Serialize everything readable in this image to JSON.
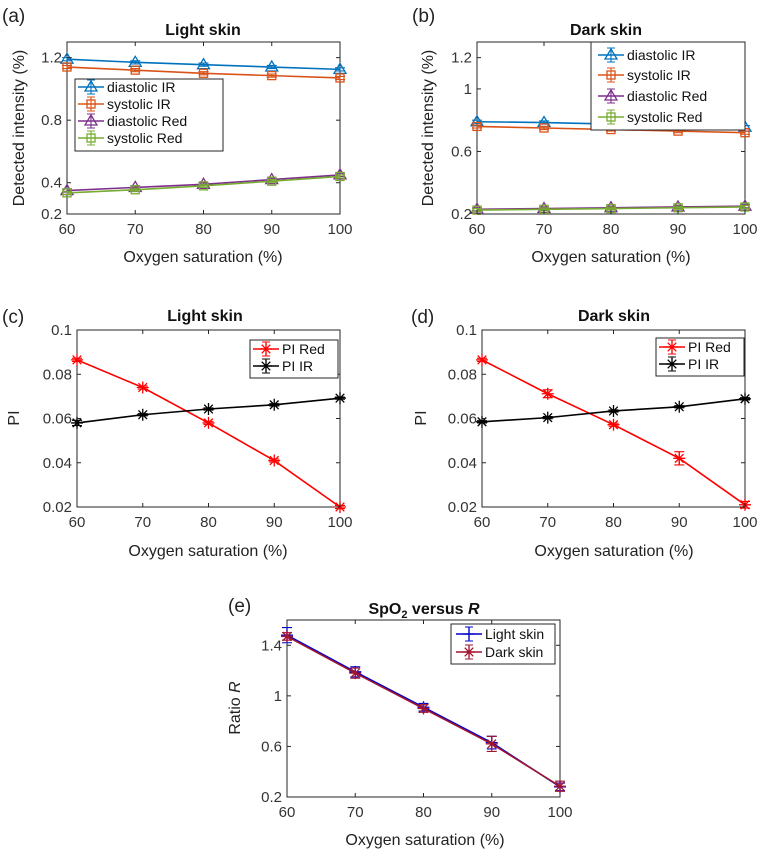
{
  "chart_data": [
    {
      "id": "a",
      "panel_label": "(a)",
      "type": "line",
      "title": "Light skin",
      "xlabel": "Oxygen saturation (%)",
      "ylabel": "Detected intensity (%)",
      "x": [
        60,
        70,
        80,
        90,
        100
      ],
      "xlim": [
        60,
        100
      ],
      "ylim": [
        0.2,
        1.3
      ],
      "xticks": [
        60,
        70,
        80,
        90,
        100
      ],
      "yticks": [
        0.2,
        0.4,
        0.8,
        1.2
      ],
      "yticklabels": [
        "0.2",
        "0.4",
        "0.8",
        "1.2"
      ],
      "legend_location": "center-left",
      "series": [
        {
          "name": "diastolic IR",
          "color": "#0072BD",
          "marker": "triangle",
          "values": [
            1.19,
            1.17,
            1.155,
            1.14,
            1.125
          ],
          "errors": [
            0.01,
            0.01,
            0.01,
            0.01,
            0.01
          ]
        },
        {
          "name": "systolic IR",
          "color": "#D95319",
          "marker": "square",
          "values": [
            1.14,
            1.12,
            1.1,
            1.085,
            1.07
          ],
          "errors": [
            0.01,
            0.01,
            0.01,
            0.01,
            0.01
          ]
        },
        {
          "name": "diastolic Red",
          "color": "#7E2F8E",
          "marker": "triangle",
          "values": [
            0.35,
            0.37,
            0.39,
            0.42,
            0.45
          ],
          "errors": [
            0.01,
            0.01,
            0.01,
            0.01,
            0.01
          ]
        },
        {
          "name": "systolic Red",
          "color": "#77AC30",
          "marker": "square",
          "values": [
            0.335,
            0.355,
            0.38,
            0.41,
            0.44
          ],
          "errors": [
            0.01,
            0.01,
            0.01,
            0.01,
            0.01
          ]
        }
      ]
    },
    {
      "id": "b",
      "panel_label": "(b)",
      "type": "line",
      "title": "Dark skin",
      "xlabel": "Oxygen saturation (%)",
      "ylabel": "Detected intensity (%)",
      "x": [
        60,
        70,
        80,
        90,
        100
      ],
      "xlim": [
        60,
        100
      ],
      "ylim": [
        0.2,
        1.3
      ],
      "xticks": [
        60,
        70,
        80,
        90,
        100
      ],
      "yticks": [
        0.2,
        0.6,
        1.0,
        1.2
      ],
      "yticklabels": [
        "0.2",
        "0.6",
        "1",
        "1.2"
      ],
      "legend_location": "top-right",
      "series": [
        {
          "name": "diastolic IR",
          "color": "#0072BD",
          "marker": "triangle",
          "values": [
            0.79,
            0.785,
            0.775,
            0.765,
            0.755
          ],
          "errors": [
            0.01,
            0.01,
            0.01,
            0.01,
            0.01
          ]
        },
        {
          "name": "systolic IR",
          "color": "#D95319",
          "marker": "square",
          "values": [
            0.76,
            0.75,
            0.74,
            0.73,
            0.72
          ],
          "errors": [
            0.01,
            0.01,
            0.01,
            0.01,
            0.01
          ]
        },
        {
          "name": "diastolic Red",
          "color": "#7E2F8E",
          "marker": "triangle",
          "values": [
            0.23,
            0.235,
            0.24,
            0.245,
            0.25
          ],
          "errors": [
            0.01,
            0.01,
            0.01,
            0.01,
            0.01
          ]
        },
        {
          "name": "systolic Red",
          "color": "#77AC30",
          "marker": "square",
          "values": [
            0.225,
            0.23,
            0.235,
            0.24,
            0.245
          ],
          "errors": [
            0.01,
            0.01,
            0.01,
            0.01,
            0.01
          ]
        }
      ]
    },
    {
      "id": "c",
      "panel_label": "(c)",
      "type": "line",
      "title": "Light skin",
      "xlabel": "Oxygen saturation (%)",
      "ylabel": "PI",
      "x": [
        60,
        70,
        80,
        90,
        100
      ],
      "xlim": [
        60,
        100
      ],
      "ylim": [
        0.02,
        0.1
      ],
      "xticks": [
        60,
        70,
        80,
        90,
        100
      ],
      "yticks": [
        0.02,
        0.04,
        0.06,
        0.08,
        0.1
      ],
      "yticklabels": [
        "0.02",
        "0.04",
        "0.06",
        "0.08",
        "0.1"
      ],
      "legend_location": "top-right",
      "series": [
        {
          "name": "PI Red",
          "color": "#FF0000",
          "marker": "star",
          "values": [
            0.0865,
            0.074,
            0.058,
            0.041,
            0.02
          ],
          "errors": [
            0.0007,
            0.0007,
            0.0007,
            0.0007,
            0.0007
          ]
        },
        {
          "name": "PI IR",
          "color": "#000000",
          "marker": "star",
          "values": [
            0.058,
            0.0617,
            0.0643,
            0.0662,
            0.0692
          ],
          "errors": [
            0.0012,
            0.0005,
            0.0005,
            0.0005,
            0.0005
          ]
        }
      ]
    },
    {
      "id": "d",
      "panel_label": "(d)",
      "type": "line",
      "title": "Dark skin",
      "xlabel": "Oxygen saturation (%)",
      "ylabel": "PI",
      "x": [
        60,
        70,
        80,
        90,
        100
      ],
      "xlim": [
        60,
        100
      ],
      "ylim": [
        0.02,
        0.1
      ],
      "xticks": [
        60,
        70,
        80,
        90,
        100
      ],
      "yticks": [
        0.02,
        0.04,
        0.06,
        0.08,
        0.1
      ],
      "yticklabels": [
        "0.02",
        "0.04",
        "0.06",
        "0.08",
        "0.1"
      ],
      "legend_location": "top-right",
      "series": [
        {
          "name": "PI Red",
          "color": "#FF0000",
          "marker": "star",
          "values": [
            0.0865,
            0.0712,
            0.0572,
            0.042,
            0.021
          ],
          "errors": [
            0.0007,
            0.0018,
            0.0007,
            0.003,
            0.0015
          ]
        },
        {
          "name": "PI IR",
          "color": "#000000",
          "marker": "star",
          "values": [
            0.0585,
            0.0604,
            0.0634,
            0.0653,
            0.0689
          ],
          "errors": [
            0.0005,
            0.0005,
            0.0005,
            0.0005,
            0.0005
          ]
        }
      ]
    },
    {
      "id": "e",
      "panel_label": "(e)",
      "type": "line",
      "title": "SpO₂ versus R",
      "title_prefix": "SpO",
      "title_sub": "2",
      "title_suffix": " versus ",
      "title_var": "R",
      "xlabel": "Oxygen saturation (%)",
      "ylabel_prefix": "Ratio ",
      "ylabel_var": "R",
      "x": [
        60,
        70,
        80,
        90,
        100
      ],
      "xlim": [
        60,
        100
      ],
      "ylim": [
        0.2,
        1.6
      ],
      "xticks": [
        60,
        70,
        80,
        90,
        100
      ],
      "yticks": [
        0.2,
        0.6,
        1.0,
        1.4
      ],
      "yticklabels": [
        "0.2",
        "0.6",
        "1",
        "1.4"
      ],
      "legend_location": "top-right",
      "series": [
        {
          "name": "Light skin",
          "color": "#0000CC",
          "marker": "plus",
          "values": [
            1.48,
            1.19,
            0.91,
            0.63,
            0.28
          ],
          "errors": [
            0.06,
            0.04,
            0.03,
            0.05,
            0.03
          ]
        },
        {
          "name": "Dark skin",
          "color": "#A2142F",
          "marker": "star",
          "values": [
            1.47,
            1.18,
            0.9,
            0.62,
            0.285
          ],
          "errors": [
            0.03,
            0.04,
            0.03,
            0.06,
            0.04
          ]
        }
      ]
    }
  ]
}
